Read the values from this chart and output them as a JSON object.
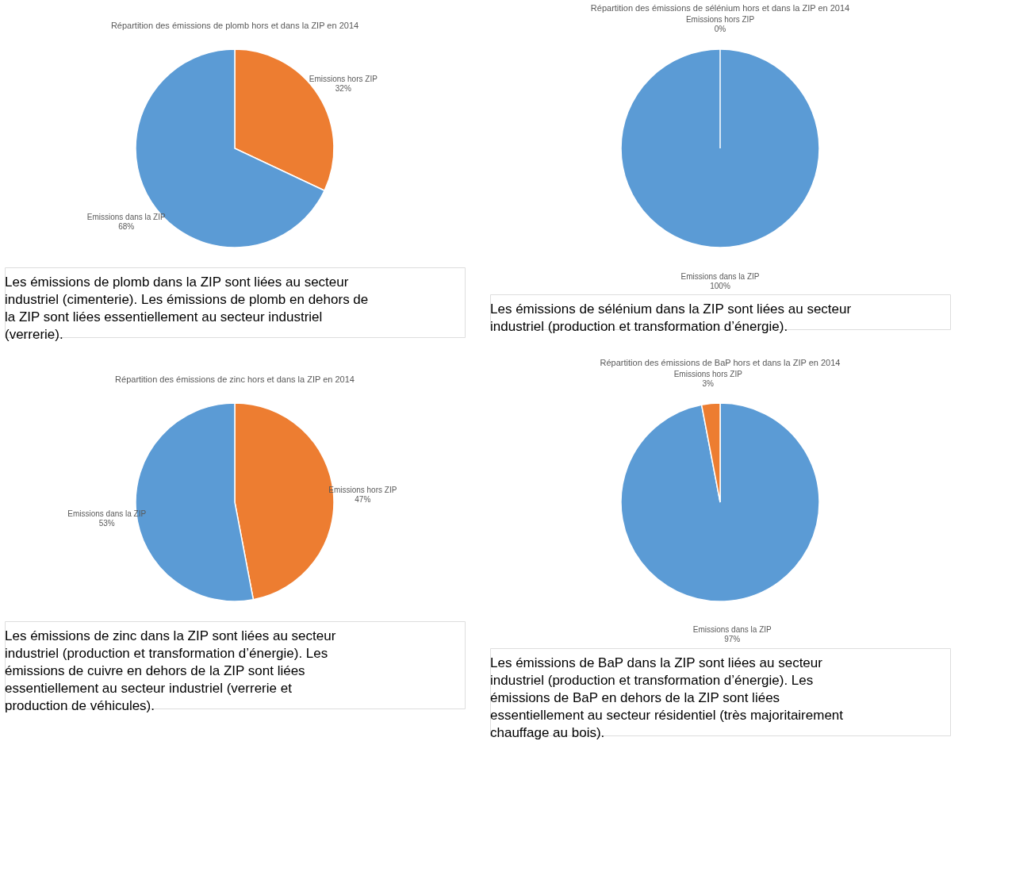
{
  "chart_data": [
    {
      "type": "pie",
      "title": "Répartition des émissions de plomb hors et dans la ZIP en 2014",
      "categories": [
        "Emissions hors ZIP",
        "Emissions dans la ZIP"
      ],
      "values": [
        32,
        68
      ],
      "colors": [
        "#ed7d31",
        "#5b9bd5"
      ],
      "value_labels": [
        "32%",
        "68%"
      ],
      "legend": false,
      "annotations": [
        "Les émissions de plomb dans la ZIP sont liées au secteur industriel (cimenterie). Les émissions de plomb en dehors de la ZIP sont liées essentiellement au secteur industriel (verrerie)."
      ]
    },
    {
      "type": "pie",
      "title": "Répartition des émissions de sélénium hors et dans la ZIP en 2014",
      "categories": [
        "Emissions dans la ZIP",
        "Emissions hors ZIP"
      ],
      "values": [
        100,
        0
      ],
      "colors": [
        "#5b9bd5",
        "#ed7d31"
      ],
      "value_labels": [
        "100%",
        "0%"
      ],
      "legend": false,
      "annotations": [
        "Les émissions de sélénium dans la ZIP sont liées au secteur industriel (production et transformation d’énergie)."
      ]
    },
    {
      "type": "pie",
      "title": "Répartition des émissions de zinc hors et dans la ZIP en 2014",
      "categories": [
        "Emissions hors ZIP",
        "Emissions dans la ZIP"
      ],
      "values": [
        47,
        53
      ],
      "colors": [
        "#ed7d31",
        "#5b9bd5"
      ],
      "value_labels": [
        "47%",
        "53%"
      ],
      "legend": false,
      "annotations": [
        "Les émissions de zinc dans la ZIP sont liées au secteur industriel (production et transformation d’énergie). Les émissions de cuivre en dehors de la ZIP sont liées essentiellement au secteur industriel (verrerie et production de véhicules)."
      ]
    },
    {
      "type": "pie",
      "title": "Répartition des émissions de BaP hors et dans la ZIP en 2014",
      "categories": [
        "Emissions dans la ZIP",
        "Emissions hors ZIP"
      ],
      "values": [
        97,
        3
      ],
      "colors": [
        "#5b9bd5",
        "#ed7d31"
      ],
      "value_labels": [
        "97%",
        "3%"
      ],
      "legend": false,
      "annotations": [
        "Les émissions de BaP dans la ZIP sont liées au secteur industriel (production et transformation d’énergie). Les émissions de BaP en dehors de la ZIP sont liées essentiellement au secteur résidentiel (très majoritairement chauffage au bois)."
      ]
    }
  ]
}
